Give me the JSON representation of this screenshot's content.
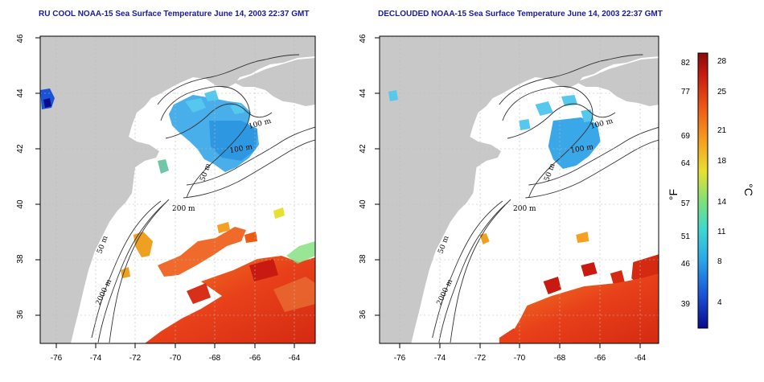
{
  "titles": {
    "left": "RU COOL NOAA-15 Sea Surface Temperature June 14, 2003 22:37 GMT",
    "right": "DECLOUDED NOAA-15 Sea Surface Temperature June 14, 2003 22:37 GMT"
  },
  "axes": {
    "lat_ticks": [
      "36",
      "38",
      "40",
      "42",
      "44",
      "46"
    ],
    "lon_ticks": [
      "-76",
      "-74",
      "-72",
      "-70",
      "-68",
      "-66",
      "-64"
    ]
  },
  "contours": {
    "labels": [
      "100 m",
      "100 m",
      "50 m",
      "200 m",
      "50 m",
      "2000 m"
    ]
  },
  "colorbar": {
    "f_label": "°F",
    "c_label": "°C",
    "f_ticks": [
      "82",
      "77",
      "69",
      "64",
      "57",
      "51",
      "46",
      "39"
    ],
    "c_ticks": [
      "28",
      "25",
      "21",
      "18",
      "14",
      "11",
      "8",
      "4"
    ],
    "colors": [
      "#0a0a8c",
      "#1a52d8",
      "#2aa8e8",
      "#3ed8d0",
      "#7ee07a",
      "#e8e030",
      "#f5a020",
      "#ee5a14",
      "#c81a10",
      "#8a0a0a"
    ]
  },
  "colors": {
    "land": "#c8c8c8",
    "cold": "#3aa8e8",
    "warm": "#e8401a",
    "title": "#1a1aa0"
  }
}
